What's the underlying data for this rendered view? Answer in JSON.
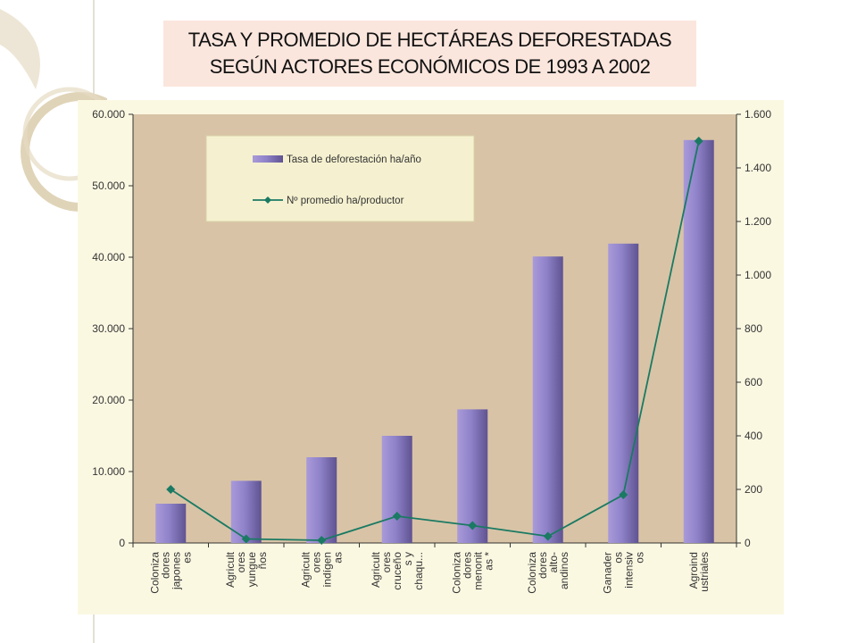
{
  "title": {
    "line1": "TASA Y PROMEDIO DE HECTÁREAS DEFORESTADAS",
    "line2": "SEGÚN ACTORES ECONÓMICOS DE 1993 A 2002"
  },
  "colors": {
    "bar": "#8c7fc6",
    "line": "#1a7a63",
    "plot_bg": "#d8c3a6",
    "outer_bg": "#fbf8e2",
    "legend_bg": "#f5f1d0",
    "title_bg": "#fbe6dd"
  },
  "chart_data": {
    "type": "bar",
    "title": "TASA Y PROMEDIO DE HECTÁREAS DEFORESTADAS SEGÚN ACTORES ECONÓMICOS DE 1993 A 2002",
    "xlabel": "",
    "ylabel": "",
    "categories": [
      [
        "Coloniza",
        "dores",
        "japones",
        "es"
      ],
      [
        "Agricult",
        "ores",
        "yungue",
        "ños"
      ],
      [
        "Agricult",
        "ores",
        "indígen",
        "as"
      ],
      [
        "Agricult",
        "ores",
        "cruceño",
        "s y",
        "chaqu..."
      ],
      [
        "Coloniza",
        "dores",
        "menonit",
        "as *"
      ],
      [
        "Coloniza",
        "dores",
        "alto-",
        "andinos"
      ],
      [
        "Ganader",
        "os",
        "intensiv",
        "os"
      ],
      [
        "Agroind",
        "ustriales"
      ]
    ],
    "y_left": {
      "lim": [
        0,
        60000
      ],
      "ticks": [
        "0",
        "10.000",
        "20.000",
        "30.000",
        "40.000",
        "50.000",
        "60.000"
      ],
      "tick_values": [
        0,
        10000,
        20000,
        30000,
        40000,
        50000,
        60000
      ]
    },
    "y_right": {
      "lim": [
        0,
        1600
      ],
      "ticks": [
        "0",
        "200",
        "400",
        "600",
        "800",
        "1.000",
        "1.200",
        "1.400",
        "1.600"
      ],
      "tick_values": [
        0,
        200,
        400,
        600,
        800,
        1000,
        1200,
        1400,
        1600
      ]
    },
    "series": [
      {
        "name": "Tasa de deforestación ha/año",
        "type": "bar",
        "axis": "left",
        "values": [
          5500,
          8700,
          12000,
          15000,
          18700,
          40100,
          41900,
          56400
        ]
      },
      {
        "name": "Nº promedio ha/productor",
        "type": "line",
        "axis": "right",
        "values": [
          200,
          15,
          10,
          100,
          65,
          25,
          180,
          1500
        ]
      }
    ],
    "legend_position": "top-left",
    "grid": false
  }
}
